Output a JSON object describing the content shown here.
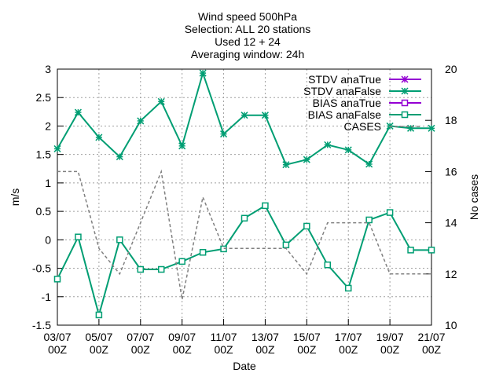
{
  "chart_data": {
    "type": "line",
    "title_lines": [
      "Wind speed 500hPa",
      "Selection: ALL      20 stations",
      "Used 12 + 24",
      "Averaging window: 24h"
    ],
    "xlabel": "Date",
    "ylabel": "m/s",
    "y2label": "No cases",
    "ylim": [
      -1.5,
      3
    ],
    "y2lim": [
      10,
      20
    ],
    "yticks": [
      "-1.5",
      "-1",
      "-0.5",
      "0",
      "0.5",
      "1",
      "1.5",
      "2",
      "2.5",
      "3"
    ],
    "y2ticks": [
      "10",
      "12",
      "14",
      "16",
      "18",
      "20"
    ],
    "xticks": [
      {
        "date": "03/07",
        "time": "00Z"
      },
      {
        "date": "05/07",
        "time": "00Z"
      },
      {
        "date": "07/07",
        "time": "00Z"
      },
      {
        "date": "09/07",
        "time": "00Z"
      },
      {
        "date": "11/07",
        "time": "00Z"
      },
      {
        "date": "13/07",
        "time": "00Z"
      },
      {
        "date": "15/07",
        "time": "00Z"
      },
      {
        "date": "17/07",
        "time": "00Z"
      },
      {
        "date": "19/07",
        "time": "00Z"
      },
      {
        "date": "21/07",
        "time": "00Z"
      }
    ],
    "grid": true,
    "legend_position": "top-right",
    "series": [
      {
        "name": "STDV anaTrue",
        "color": "#9400d3",
        "marker": "asterisk",
        "axis": "y",
        "values": []
      },
      {
        "name": "STDV anaFalse",
        "color": "#009e73",
        "marker": "asterisk",
        "axis": "y",
        "x": [
          0,
          1,
          2,
          3,
          4,
          5,
          6,
          7,
          8,
          9,
          10,
          11,
          12,
          13,
          14,
          15,
          16,
          17,
          18
        ],
        "values": [
          1.6,
          2.24,
          1.8,
          1.46,
          2.09,
          2.43,
          1.65,
          2.93,
          1.86,
          2.19,
          2.19,
          1.32,
          1.41,
          1.67,
          1.58,
          1.33,
          2.0,
          1.96,
          1.96
        ]
      },
      {
        "name": "BIAS anaTrue",
        "color": "#9400d3",
        "marker": "square",
        "axis": "y",
        "values": []
      },
      {
        "name": "BIAS anaFalse",
        "color": "#009e73",
        "marker": "square",
        "axis": "y",
        "x": [
          0,
          1,
          2,
          3,
          4,
          5,
          6,
          7,
          8,
          9,
          10,
          11,
          12,
          13,
          14,
          15,
          16,
          17,
          18
        ],
        "values": [
          -0.69,
          0.05,
          -1.32,
          0.0,
          -0.52,
          -0.52,
          -0.38,
          -0.22,
          -0.16,
          0.38,
          0.6,
          -0.09,
          0.24,
          -0.44,
          -0.85,
          0.35,
          0.48,
          -0.18,
          -0.18
        ]
      },
      {
        "name": "CASES",
        "color": "#808080",
        "marker": "none",
        "dash": true,
        "axis": "y2",
        "x": [
          0,
          1,
          2,
          3,
          4,
          5,
          6,
          7,
          8,
          9,
          10,
          11,
          12,
          13,
          14,
          15,
          16,
          17,
          18
        ],
        "values": [
          16,
          16,
          13,
          12,
          14,
          16,
          11,
          15,
          13,
          13,
          13,
          13,
          12,
          14,
          14,
          14,
          12,
          12,
          12
        ]
      }
    ]
  }
}
